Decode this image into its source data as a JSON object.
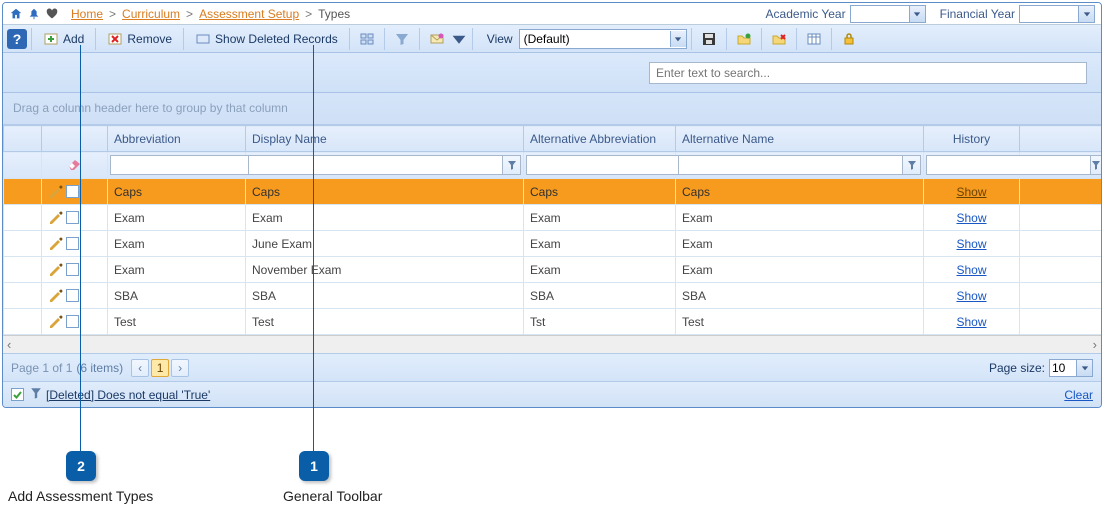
{
  "breadcrumb": {
    "items": [
      "Home",
      "Curriculum",
      "Assessment Setup",
      "Types"
    ],
    "academic_year_label": "Academic Year",
    "academic_year_value": "",
    "financial_year_label": "Financial Year",
    "financial_year_value": ""
  },
  "toolbar": {
    "help_tooltip": "?",
    "add_label": "Add",
    "remove_label": "Remove",
    "show_deleted_label": "Show Deleted Records",
    "view_label": "View",
    "view_value": "(Default)"
  },
  "search": {
    "placeholder": "Enter text to search..."
  },
  "group_panel": {
    "hint": "Drag a column header here to group by that column"
  },
  "columns": {
    "abbreviation": "Abbreviation",
    "display_name": "Display Name",
    "alt_abbreviation": "Alternative Abbreviation",
    "alt_name": "Alternative Name",
    "history": "History"
  },
  "rows": [
    {
      "abbr": "Caps",
      "display": "Caps",
      "alt_abbr": "Caps",
      "alt_name": "Caps",
      "history": "Show",
      "selected": true
    },
    {
      "abbr": "Exam",
      "display": "Exam",
      "alt_abbr": "Exam",
      "alt_name": "Exam",
      "history": "Show",
      "selected": false
    },
    {
      "abbr": "Exam",
      "display": "June Exam",
      "alt_abbr": "Exam",
      "alt_name": "Exam",
      "history": "Show",
      "selected": false
    },
    {
      "abbr": "Exam",
      "display": "November Exam",
      "alt_abbr": "Exam",
      "alt_name": "Exam",
      "history": "Show",
      "selected": false
    },
    {
      "abbr": "SBA",
      "display": "SBA",
      "alt_abbr": "SBA",
      "alt_name": "SBA",
      "history": "Show",
      "selected": false
    },
    {
      "abbr": "Test",
      "display": "Test",
      "alt_abbr": "Tst",
      "alt_name": "Test",
      "history": "Show",
      "selected": false
    }
  ],
  "pager": {
    "info1": "Page 1 of 1",
    "info2": "(6 items)",
    "current_page": "1",
    "page_size_label": "Page size:",
    "page_size_value": "10"
  },
  "filter_bar": {
    "expression": "[Deleted] Does not equal 'True'",
    "clear_label": "Clear",
    "checked": true
  },
  "annotations": {
    "n1": "1",
    "n2": "2",
    "label1": "General Toolbar",
    "label2": "Add Assessment Types"
  },
  "colors": {
    "selection": "#f79b1f",
    "link": "#1857c4",
    "crumb": "#d97c1f",
    "header_text": "#3b5a8a"
  }
}
